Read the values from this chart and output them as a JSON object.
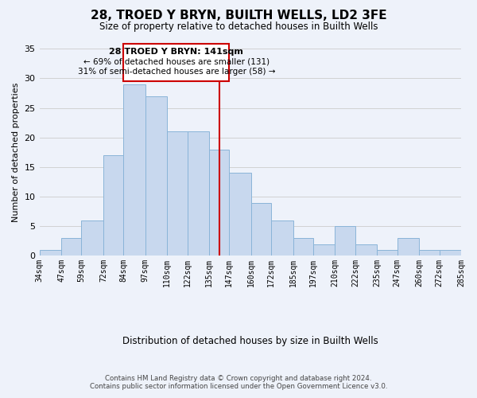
{
  "title": "28, TROED Y BRYN, BUILTH WELLS, LD2 3FE",
  "subtitle": "Size of property relative to detached houses in Builth Wells",
  "xlabel": "Distribution of detached houses by size in Builth Wells",
  "ylabel": "Number of detached properties",
  "bin_edges": [
    34,
    47,
    59,
    72,
    84,
    97,
    110,
    122,
    135,
    147,
    160,
    172,
    185,
    197,
    210,
    222,
    235,
    247,
    260,
    272,
    285
  ],
  "bin_labels": [
    "34sqm",
    "47sqm",
    "59sqm",
    "72sqm",
    "84sqm",
    "97sqm",
    "110sqm",
    "122sqm",
    "135sqm",
    "147sqm",
    "160sqm",
    "172sqm",
    "185sqm",
    "197sqm",
    "210sqm",
    "222sqm",
    "235sqm",
    "247sqm",
    "260sqm",
    "272sqm",
    "285sqm"
  ],
  "counts": [
    1,
    3,
    6,
    17,
    29,
    27,
    21,
    21,
    18,
    14,
    9,
    6,
    3,
    2,
    5,
    2,
    1,
    3,
    1,
    1
  ],
  "bar_color": "#c8d8ee",
  "bar_edge_color": "#8ab4d8",
  "property_size": 141,
  "vline_color": "#cc0000",
  "ylim": [
    0,
    35
  ],
  "yticks": [
    0,
    5,
    10,
    15,
    20,
    25,
    30,
    35
  ],
  "annotation_title": "28 TROED Y BRYN: 141sqm",
  "annotation_line1": "← 69% of detached houses are smaller (131)",
  "annotation_line2": "31% of semi-detached houses are larger (58) →",
  "annotation_box_color": "#ffffff",
  "annotation_box_edge": "#cc0000",
  "footer_line1": "Contains HM Land Registry data © Crown copyright and database right 2024.",
  "footer_line2": "Contains public sector information licensed under the Open Government Licence v3.0.",
  "background_color": "#eef2fa"
}
